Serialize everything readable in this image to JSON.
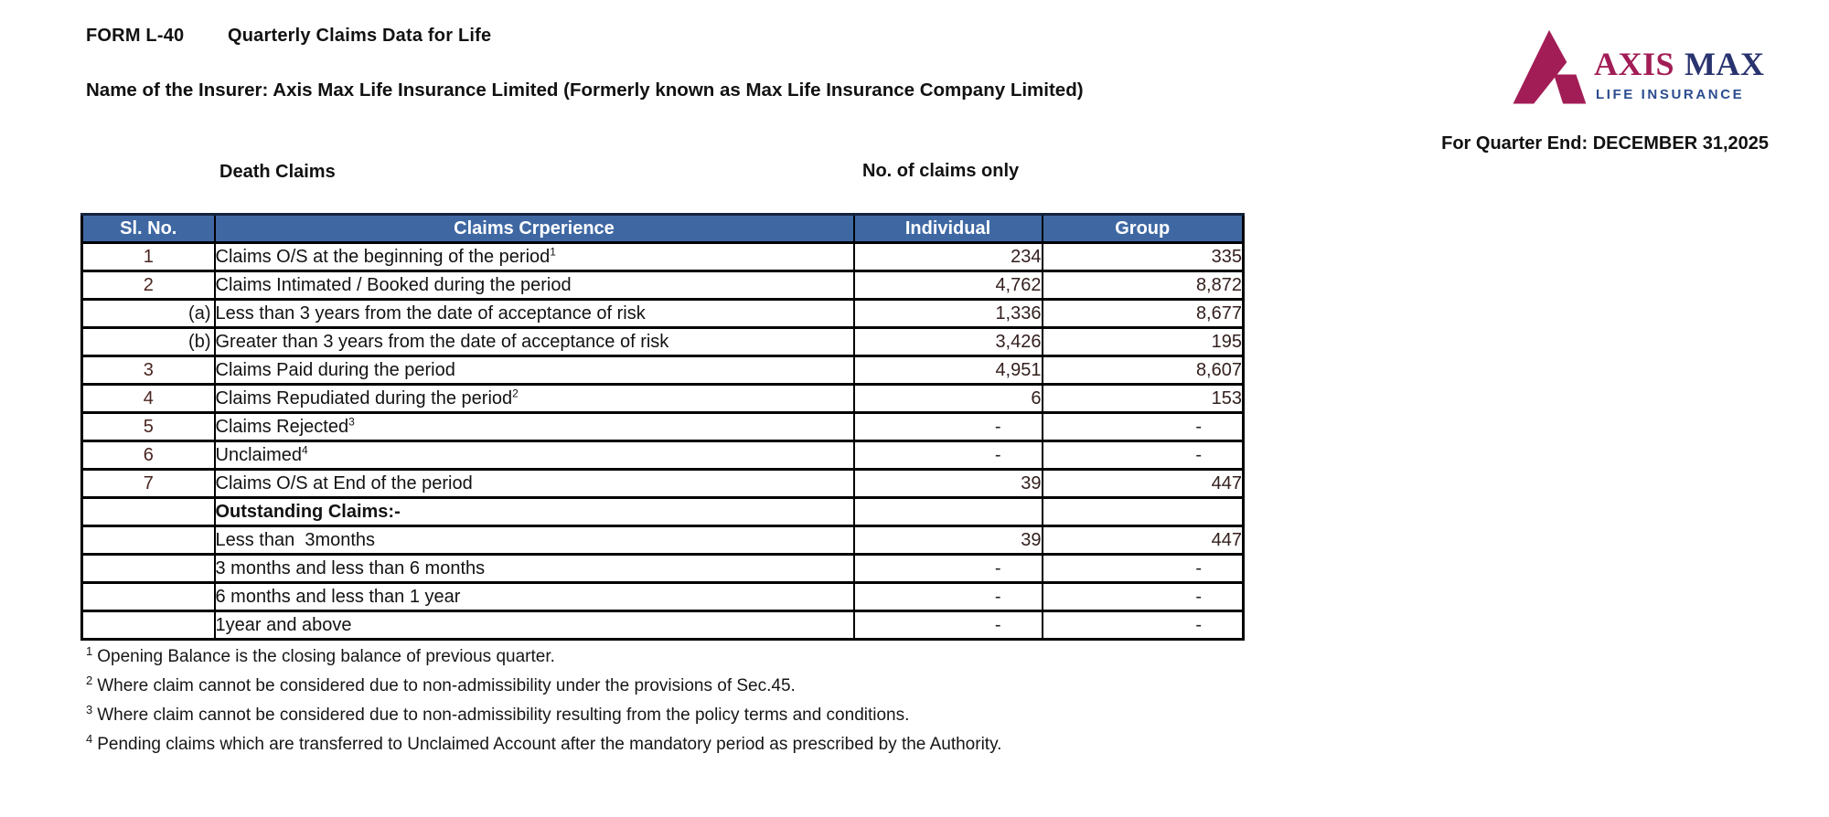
{
  "header": {
    "form_code": "FORM L-40",
    "form_title": "Quarterly Claims Data for Life",
    "insurer_line": "Name of the Insurer: Axis Max Life Insurance Limited (Formerly known as Max Life Insurance Company Limited)",
    "quarter_end": "For Quarter End: DECEMBER 31,2025"
  },
  "logo": {
    "brand_primary": "AXIS",
    "brand_secondary": "MAX",
    "brand_subtitle": "LIFE INSURANCE",
    "colors": {
      "burgundy": "#A21D56",
      "navy": "#29336F",
      "blue": "#2B4C8F"
    }
  },
  "section": {
    "left_label": "Death Claims",
    "right_label": "No. of claims only"
  },
  "table": {
    "header_bg": "#3F68A3",
    "columns": [
      "Sl. No.",
      "Claims Crperience",
      "Individual",
      "Group"
    ],
    "rows": [
      {
        "sl": "1",
        "label": "Claims O/S at the beginning of the period",
        "sup": "1",
        "individual": "234",
        "group": "335"
      },
      {
        "sl": "2",
        "label": "Claims Intimated / Booked during the period",
        "sup": "",
        "individual": "4,762",
        "group": "8,872"
      },
      {
        "sl": "(a)",
        "label": "Less than 3 years from the date of acceptance of risk",
        "sup": "",
        "individual": "1,336",
        "group": "8,677"
      },
      {
        "sl": "(b)",
        "label": "Greater than 3 years from the date of acceptance of risk",
        "sup": "",
        "individual": "3,426",
        "group": "195"
      },
      {
        "sl": "3",
        "label": "Claims Paid during the period",
        "sup": "",
        "individual": "4,951",
        "group": "8,607"
      },
      {
        "sl": "4",
        "label": "Claims Repudiated during the period",
        "sup": "2",
        "individual": "6",
        "group": "153"
      },
      {
        "sl": "5",
        "label": "Claims Rejected",
        "sup": "3",
        "individual": "-",
        "group": "-"
      },
      {
        "sl": "6",
        "label": "Unclaimed",
        "sup": "4",
        "individual": "-",
        "group": "-"
      },
      {
        "sl": "7",
        "label": "Claims O/S at End of the period",
        "sup": "",
        "individual": "39",
        "group": "447"
      },
      {
        "sl": "",
        "label": "Outstanding Claims:-",
        "sup": "",
        "bold": true,
        "individual": "",
        "group": ""
      },
      {
        "sl": "",
        "label": "Less than  3months",
        "sup": "",
        "individual": "39",
        "group": "447"
      },
      {
        "sl": "",
        "label": "3 months and less than 6 months",
        "sup": "",
        "individual": "-",
        "group": "-"
      },
      {
        "sl": "",
        "label": "6 months and less than 1 year",
        "sup": "",
        "individual": "-",
        "group": "-"
      },
      {
        "sl": "",
        "label": "1year and above",
        "sup": "",
        "individual": "-",
        "group": "-"
      }
    ]
  },
  "footnotes": [
    {
      "marker": "1",
      "text": "Opening Balance is the closing balance of previous quarter."
    },
    {
      "marker": "2",
      "text": "Where claim cannot be considered due to non-admissibility under the provisions of Sec.45."
    },
    {
      "marker": "3",
      "text": "Where claim cannot be considered due to non-admissibility resulting from the policy terms and conditions."
    },
    {
      "marker": "4",
      "text": "Pending claims which are transferred to Unclaimed Account after the mandatory period as prescribed by the Authority."
    }
  ]
}
